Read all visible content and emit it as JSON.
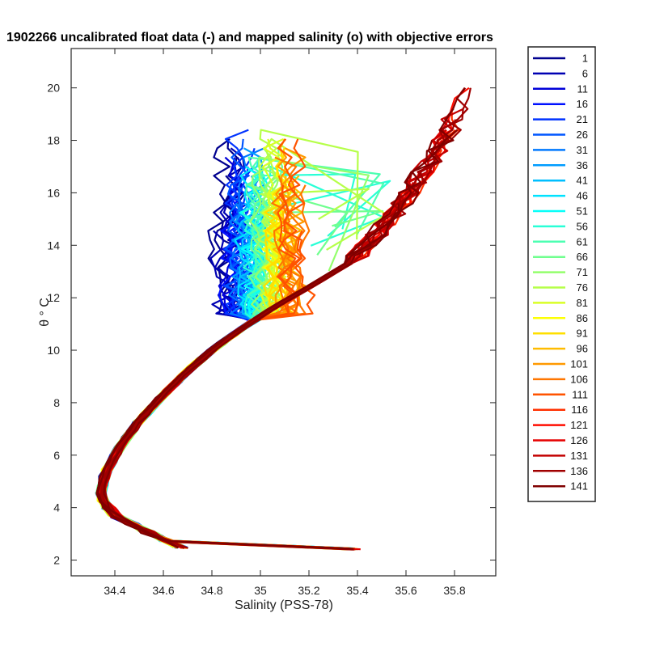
{
  "chart_data": {
    "type": "line",
    "title": "1902266 uncalibrated float data (-) and mapped salinity (o) with objective errors",
    "xlabel": "Salinity (PSS-78)",
    "ylabel": "θ ° C",
    "xlim": [
      34.22,
      35.97
    ],
    "ylim": [
      1.4,
      21.5
    ],
    "xticks": [
      34.4,
      34.6,
      34.8,
      35,
      35.2,
      35.4,
      35.6,
      35.8
    ],
    "xtick_labels": [
      "34.4",
      "34.6",
      "34.8",
      "35",
      "35.2",
      "35.4",
      "35.6",
      "35.8"
    ],
    "yticks": [
      2,
      4,
      6,
      8,
      10,
      12,
      14,
      16,
      18,
      20
    ],
    "ytick_labels": [
      "2",
      "4",
      "6",
      "8",
      "10",
      "12",
      "14",
      "16",
      "18",
      "20"
    ],
    "legend_position": "outside-right",
    "grid": false,
    "series": [
      {
        "name": "1",
        "color": "#00008f"
      },
      {
        "name": "6",
        "color": "#0000b3"
      },
      {
        "name": "11",
        "color": "#0000d9"
      },
      {
        "name": "16",
        "color": "#0010ff"
      },
      {
        "name": "21",
        "color": "#0033ff"
      },
      {
        "name": "26",
        "color": "#0056ff"
      },
      {
        "name": "31",
        "color": "#0079ff"
      },
      {
        "name": "36",
        "color": "#009cff"
      },
      {
        "name": "41",
        "color": "#00bfff"
      },
      {
        "name": "46",
        "color": "#00e2ff"
      },
      {
        "name": "51",
        "color": "#06fff9"
      },
      {
        "name": "56",
        "color": "#29ffd6"
      },
      {
        "name": "61",
        "color": "#4dffb2"
      },
      {
        "name": "66",
        "color": "#70ff8f"
      },
      {
        "name": "71",
        "color": "#93ff6c"
      },
      {
        "name": "76",
        "color": "#b6ff49"
      },
      {
        "name": "81",
        "color": "#d9ff26"
      },
      {
        "name": "86",
        "color": "#fcff03"
      },
      {
        "name": "91",
        "color": "#ffdf00"
      },
      {
        "name": "96",
        "color": "#ffbc00"
      },
      {
        "name": "101",
        "color": "#ff9900"
      },
      {
        "name": "106",
        "color": "#ff7600"
      },
      {
        "name": "111",
        "color": "#ff5300"
      },
      {
        "name": "116",
        "color": "#ff3000"
      },
      {
        "name": "121",
        "color": "#ff0d00"
      },
      {
        "name": "126",
        "color": "#e60000"
      },
      {
        "name": "131",
        "color": "#c30000"
      },
      {
        "name": "136",
        "color": "#a00000"
      },
      {
        "name": "141",
        "color": "#800000"
      }
    ]
  }
}
